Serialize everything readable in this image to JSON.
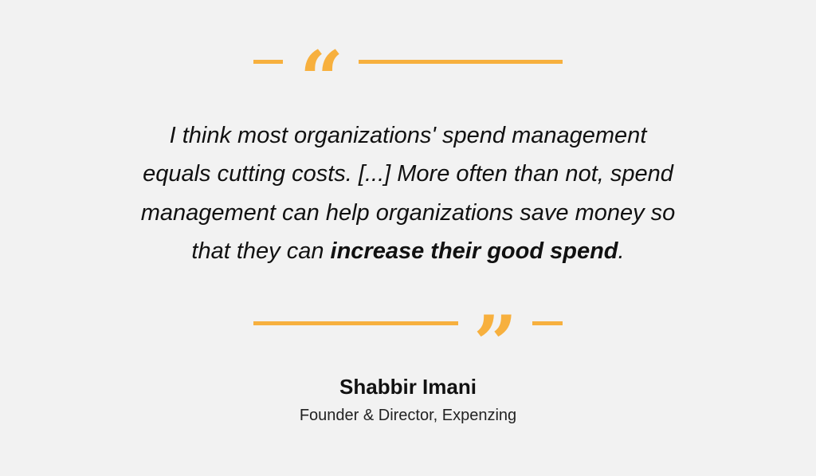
{
  "quote": {
    "open_mark": "“",
    "close_mark": "”",
    "lines": [
      "I think most organizations' spend management",
      "equals cutting costs. [...] More often than not, spend",
      "management can help organizations save money so"
    ],
    "last_line": {
      "before": "that they can ",
      "emphasis": "increase their good spend",
      "after": "."
    }
  },
  "author": {
    "name": "Shabbir Imani",
    "role": "Founder & Director, Expenzing"
  }
}
